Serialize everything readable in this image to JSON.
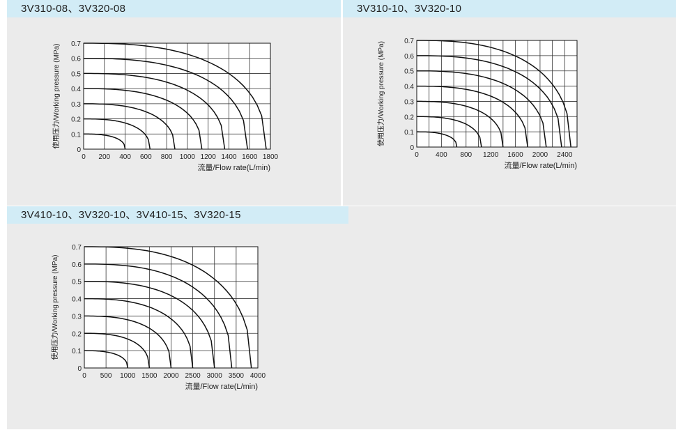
{
  "panels": [
    {
      "title": "3V310-08、3V320-08"
    },
    {
      "title": "3V310-10、3V320-10"
    },
    {
      "title": "3V410-10、3V320-10、3V410-15、3V320-15"
    }
  ],
  "chart_data": [
    {
      "type": "line",
      "xlabel": "流量/Flow rate(L/min)",
      "ylabel": "使用压力/Working pressure  (MPa)",
      "xlim": [
        0,
        1800
      ],
      "ylim": [
        0,
        0.7
      ],
      "xticks": [
        0,
        200,
        400,
        600,
        800,
        1000,
        1200,
        1400,
        1600,
        1800
      ],
      "xtick_labels": [
        "0",
        "200",
        "400",
        "600",
        "800",
        "1000",
        "1200",
        "1400",
        "1600",
        "1800"
      ],
      "yticks": [
        0,
        0.1,
        0.2,
        0.3,
        0.4,
        0.5,
        0.6,
        0.7
      ],
      "ytick_labels": [
        "0",
        "0.1",
        "0.2",
        "0.3",
        "0.4",
        "0.5",
        "0.6",
        "0.7"
      ],
      "grid": true,
      "series": [
        {
          "p": 0.1,
          "qmax": 400
        },
        {
          "p": 0.2,
          "qmax": 640
        },
        {
          "p": 0.3,
          "qmax": 880
        },
        {
          "p": 0.4,
          "qmax": 1140
        },
        {
          "p": 0.5,
          "qmax": 1360
        },
        {
          "p": 0.6,
          "qmax": 1580
        },
        {
          "p": 0.7,
          "qmax": 1760
        }
      ]
    },
    {
      "type": "line",
      "xlabel": "流量/Flow rate(L/min)",
      "ylabel": "使用压力/Working pressure  (MPa)",
      "xlim": [
        0,
        2600
      ],
      "ylim": [
        0,
        0.7
      ],
      "xticks": [
        0,
        200,
        400,
        600,
        800,
        1000,
        1200,
        1400,
        1600,
        1800,
        2000,
        2200,
        2400,
        2600
      ],
      "xtick_labels": [
        "0",
        "",
        "400",
        "",
        "800",
        "",
        "1200",
        "",
        "1600",
        "",
        "2000",
        "",
        "2400",
        ""
      ],
      "yticks": [
        0,
        0.1,
        0.2,
        0.3,
        0.4,
        0.5,
        0.6,
        0.7
      ],
      "ytick_labels": [
        "0",
        "0.1",
        "0.2",
        "0.3",
        "0.4",
        "0.5",
        "0.6",
        "0.7"
      ],
      "grid": true,
      "series": [
        {
          "p": 0.1,
          "qmax": 650
        },
        {
          "p": 0.2,
          "qmax": 1050
        },
        {
          "p": 0.3,
          "qmax": 1400
        },
        {
          "p": 0.4,
          "qmax": 1800
        },
        {
          "p": 0.5,
          "qmax": 2100
        },
        {
          "p": 0.6,
          "qmax": 2350
        },
        {
          "p": 0.7,
          "qmax": 2500
        }
      ]
    },
    {
      "type": "line",
      "xlabel": "流量/Flow rate(L/min)",
      "ylabel": "使用压力/Working pressure  (MPa)",
      "xlim": [
        0,
        4000
      ],
      "ylim": [
        0,
        0.7
      ],
      "xticks": [
        0,
        500,
        1000,
        1500,
        2000,
        2500,
        3000,
        3500,
        4000
      ],
      "xtick_labels": [
        "0",
        "500",
        "1000",
        "1500",
        "2000",
        "2500",
        "3000",
        "3500",
        "4000"
      ],
      "yticks": [
        0,
        0.1,
        0.2,
        0.3,
        0.4,
        0.5,
        0.6,
        0.7
      ],
      "ytick_labels": [
        "0",
        "0.1",
        "0.2",
        "0.3",
        "0.4",
        "0.5",
        "0.6",
        "0.7"
      ],
      "grid": true,
      "series": [
        {
          "p": 0.1,
          "qmax": 1000
        },
        {
          "p": 0.2,
          "qmax": 1500
        },
        {
          "p": 0.3,
          "qmax": 2000
        },
        {
          "p": 0.4,
          "qmax": 2500
        },
        {
          "p": 0.5,
          "qmax": 3000
        },
        {
          "p": 0.6,
          "qmax": 3400
        },
        {
          "p": 0.7,
          "qmax": 3850
        }
      ]
    }
  ]
}
